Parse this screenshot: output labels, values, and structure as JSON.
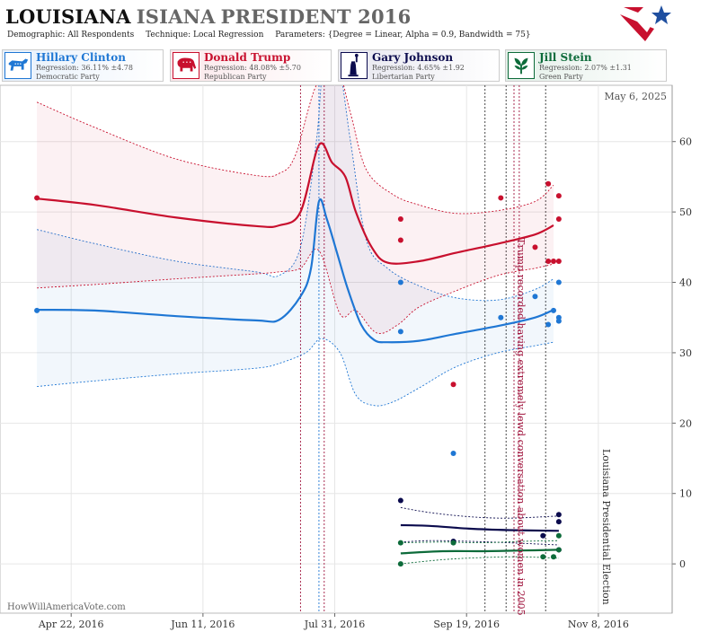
{
  "header": {
    "title_state": "LOUISIANA",
    "title_state_repeat": "ISIANA",
    "title_rest": "PRESIDENT 2016",
    "demographic": "Demographic: All Respondents",
    "technique": "Technique: Local Regression",
    "parameters": "Parameters: {Degree = Linear, Alpha = 0.9, Bandwidth = 75}"
  },
  "candidates": [
    {
      "name": "Hillary Clinton",
      "regression": "Regression: 36.11% ±4.78",
      "party": "Democratic Party",
      "color": "#1f77d4",
      "icon": "donkey-icon"
    },
    {
      "name": "Donald Trump",
      "regression": "Regression: 48.08% ±5.70",
      "party": "Republican Party",
      "color": "#c8102e",
      "icon": "elephant-icon"
    },
    {
      "name": "Gary Johnson",
      "regression": "Regression: 4.65% ±1.92",
      "party": "Libertarian Party",
      "color": "#0b0b4d",
      "icon": "statue-of-liberty-icon"
    },
    {
      "name": "Jill Stein",
      "regression": "Regression: 2.07% ±1.31",
      "party": "Green Party",
      "color": "#0d6b3a",
      "icon": "leaf-icon"
    }
  ],
  "date_stamp": "May 6, 2025",
  "watermark": "HowWillAmericaVote.com",
  "chart_data": {
    "type": "line",
    "x_axis_type": "date",
    "xlim": [
      "2016-03-26",
      "2016-12-06"
    ],
    "ylim": [
      -7,
      68
    ],
    "x_ticks": [
      "Apr 22, 2016",
      "Jun 11, 2016",
      "Jul 31, 2016",
      "Sep 19, 2016",
      "Nov 8, 2016"
    ],
    "x_tick_dates": [
      "2016-04-22",
      "2016-06-11",
      "2016-07-31",
      "2016-09-19",
      "2016-11-08"
    ],
    "y_ticks": [
      0,
      10,
      20,
      30,
      40,
      50,
      60
    ],
    "grid": true,
    "annotations": [
      {
        "text": "Trump recorded having extremely lewd conversation about women in 2005",
        "date": "2016-10-07",
        "color": "#a0153e"
      },
      {
        "text": "Louisiana Presidential Election",
        "date": "2016-11-08",
        "color": "#333333"
      }
    ],
    "event_lines": [
      {
        "date": "2016-07-18",
        "color": "#a0153e"
      },
      {
        "date": "2016-07-25",
        "color": "#1f77d4"
      },
      {
        "date": "2016-07-27",
        "color": "#a0153e"
      },
      {
        "date": "2016-09-26",
        "color": "#333333"
      },
      {
        "date": "2016-10-04",
        "color": "#333333"
      },
      {
        "date": "2016-10-07",
        "color": "#a0153e"
      },
      {
        "date": "2016-10-09",
        "color": "#a0153e"
      },
      {
        "date": "2016-10-19",
        "color": "#333333"
      }
    ],
    "series": [
      {
        "name": "Hillary Clinton",
        "color": "#1f77d4",
        "line": [
          [
            "2016-04-09",
            36.1
          ],
          [
            "2016-05-01",
            36.0
          ],
          [
            "2016-06-01",
            35.2
          ],
          [
            "2016-07-01",
            34.6
          ],
          [
            "2016-07-10",
            34.7
          ],
          [
            "2016-07-18",
            38.0
          ],
          [
            "2016-07-22",
            42.0
          ],
          [
            "2016-07-25",
            51.5
          ],
          [
            "2016-07-28",
            49.0
          ],
          [
            "2016-08-01",
            44.0
          ],
          [
            "2016-08-05",
            39.0
          ],
          [
            "2016-08-10",
            34.0
          ],
          [
            "2016-08-15",
            31.8
          ],
          [
            "2016-08-20",
            31.5
          ],
          [
            "2016-09-01",
            31.7
          ],
          [
            "2016-09-15",
            32.7
          ],
          [
            "2016-10-01",
            33.8
          ],
          [
            "2016-10-15",
            35.0
          ],
          [
            "2016-10-22",
            36.1
          ]
        ],
        "upper": [
          [
            "2016-04-09",
            47.5
          ],
          [
            "2016-05-01",
            45.5
          ],
          [
            "2016-06-01",
            43.0
          ],
          [
            "2016-07-01",
            41.5
          ],
          [
            "2016-07-10",
            41.0
          ],
          [
            "2016-07-18",
            45.0
          ],
          [
            "2016-07-24",
            60.0
          ],
          [
            "2016-07-27",
            72.0
          ],
          [
            "2016-08-01",
            72.0
          ],
          [
            "2016-08-06",
            60.0
          ],
          [
            "2016-08-12",
            46.0
          ],
          [
            "2016-08-20",
            42.0
          ],
          [
            "2016-09-01",
            39.5
          ],
          [
            "2016-09-15",
            37.8
          ],
          [
            "2016-10-01",
            37.5
          ],
          [
            "2016-10-15",
            39.0
          ],
          [
            "2016-10-22",
            40.5
          ]
        ],
        "lower": [
          [
            "2016-04-09",
            25.2
          ],
          [
            "2016-05-01",
            26.0
          ],
          [
            "2016-06-01",
            27.0
          ],
          [
            "2016-07-01",
            27.8
          ],
          [
            "2016-07-10",
            28.5
          ],
          [
            "2016-07-20",
            30.0
          ],
          [
            "2016-07-26",
            32.0
          ],
          [
            "2016-08-02",
            30.0
          ],
          [
            "2016-08-08",
            24.0
          ],
          [
            "2016-08-15",
            22.5
          ],
          [
            "2016-08-22",
            23.0
          ],
          [
            "2016-09-01",
            25.0
          ],
          [
            "2016-09-15",
            28.0
          ],
          [
            "2016-10-01",
            30.0
          ],
          [
            "2016-10-15",
            31.0
          ],
          [
            "2016-10-22",
            31.5
          ]
        ],
        "points": [
          [
            "2016-04-09",
            36
          ],
          [
            "2016-08-25",
            40
          ],
          [
            "2016-08-25",
            33
          ],
          [
            "2016-09-14",
            15.7
          ],
          [
            "2016-10-02",
            35
          ],
          [
            "2016-10-15",
            38
          ],
          [
            "2016-10-20",
            34
          ],
          [
            "2016-10-22",
            36
          ],
          [
            "2016-10-24",
            40
          ],
          [
            "2016-10-24",
            35
          ],
          [
            "2016-10-24",
            34.5
          ]
        ]
      },
      {
        "name": "Donald Trump",
        "color": "#c8102e",
        "line": [
          [
            "2016-04-09",
            51.9
          ],
          [
            "2016-05-01",
            51.0
          ],
          [
            "2016-06-01",
            49.2
          ],
          [
            "2016-07-01",
            48.0
          ],
          [
            "2016-07-10",
            48.1
          ],
          [
            "2016-07-18",
            50.0
          ],
          [
            "2016-07-25",
            59.5
          ],
          [
            "2016-07-30",
            57.0
          ],
          [
            "2016-08-04",
            55.0
          ],
          [
            "2016-08-08",
            50.0
          ],
          [
            "2016-08-14",
            45.0
          ],
          [
            "2016-08-20",
            42.8
          ],
          [
            "2016-09-01",
            43.0
          ],
          [
            "2016-09-15",
            44.2
          ],
          [
            "2016-10-01",
            45.5
          ],
          [
            "2016-10-15",
            46.8
          ],
          [
            "2016-10-22",
            48.1
          ]
        ],
        "upper": [
          [
            "2016-04-09",
            65.6
          ],
          [
            "2016-05-01",
            62.0
          ],
          [
            "2016-06-01",
            57.5
          ],
          [
            "2016-07-01",
            55.2
          ],
          [
            "2016-07-10",
            55.5
          ],
          [
            "2016-07-16",
            58.0
          ],
          [
            "2016-07-24",
            68.0
          ],
          [
            "2016-08-01",
            70.0
          ],
          [
            "2016-08-06",
            64.0
          ],
          [
            "2016-08-12",
            56.0
          ],
          [
            "2016-08-22",
            52.5
          ],
          [
            "2016-09-01",
            51.0
          ],
          [
            "2016-09-15",
            49.8
          ],
          [
            "2016-10-01",
            50.2
          ],
          [
            "2016-10-15",
            51.5
          ],
          [
            "2016-10-22",
            53.8
          ]
        ],
        "lower": [
          [
            "2016-04-09",
            39.2
          ],
          [
            "2016-05-01",
            39.7
          ],
          [
            "2016-06-01",
            40.5
          ],
          [
            "2016-07-01",
            41.2
          ],
          [
            "2016-07-10",
            41.5
          ],
          [
            "2016-07-18",
            42.0
          ],
          [
            "2016-07-25",
            44.5
          ],
          [
            "2016-08-02",
            35.5
          ],
          [
            "2016-08-08",
            36.0
          ],
          [
            "2016-08-16",
            32.8
          ],
          [
            "2016-08-24",
            34.0
          ],
          [
            "2016-09-01",
            36.5
          ],
          [
            "2016-09-15",
            38.8
          ],
          [
            "2016-10-01",
            41.0
          ],
          [
            "2016-10-15",
            42.0
          ],
          [
            "2016-10-22",
            42.6
          ]
        ],
        "points": [
          [
            "2016-04-09",
            52
          ],
          [
            "2016-08-25",
            49
          ],
          [
            "2016-08-25",
            46
          ],
          [
            "2016-09-14",
            25.5
          ],
          [
            "2016-10-02",
            52
          ],
          [
            "2016-10-15",
            45
          ],
          [
            "2016-10-20",
            54
          ],
          [
            "2016-10-20",
            43
          ],
          [
            "2016-10-22",
            43
          ],
          [
            "2016-10-24",
            52.3
          ],
          [
            "2016-10-24",
            49
          ],
          [
            "2016-10-24",
            43
          ]
        ]
      },
      {
        "name": "Gary Johnson",
        "color": "#0b0b4d",
        "line": [
          [
            "2016-08-25",
            5.5
          ],
          [
            "2016-09-05",
            5.4
          ],
          [
            "2016-09-20",
            5.0
          ],
          [
            "2016-10-05",
            4.8
          ],
          [
            "2016-10-24",
            4.7
          ]
        ],
        "upper": [
          [
            "2016-08-25",
            8.0
          ],
          [
            "2016-09-05",
            7.3
          ],
          [
            "2016-09-20",
            6.7
          ],
          [
            "2016-10-05",
            6.5
          ],
          [
            "2016-10-24",
            6.8
          ]
        ],
        "lower": [
          [
            "2016-08-25",
            3.1
          ],
          [
            "2016-09-05",
            3.3
          ],
          [
            "2016-09-20",
            3.2
          ],
          [
            "2016-10-05",
            3.0
          ],
          [
            "2016-10-24",
            2.7
          ]
        ],
        "points": [
          [
            "2016-08-25",
            9
          ],
          [
            "2016-09-14",
            3.2
          ],
          [
            "2016-10-18",
            4
          ],
          [
            "2016-10-24",
            7
          ],
          [
            "2016-10-24",
            6
          ],
          [
            "2016-10-24",
            2
          ]
        ]
      },
      {
        "name": "Jill Stein",
        "color": "#0d6b3a",
        "line": [
          [
            "2016-08-25",
            1.5
          ],
          [
            "2016-09-10",
            1.8
          ],
          [
            "2016-09-25",
            1.8
          ],
          [
            "2016-10-10",
            1.9
          ],
          [
            "2016-10-24",
            2.0
          ]
        ],
        "upper": [
          [
            "2016-08-25",
            3.0
          ],
          [
            "2016-09-10",
            3.1
          ],
          [
            "2016-09-25",
            3.0
          ],
          [
            "2016-10-10",
            3.2
          ],
          [
            "2016-10-24",
            3.3
          ]
        ],
        "lower": [
          [
            "2016-08-25",
            0.0
          ],
          [
            "2016-09-10",
            0.6
          ],
          [
            "2016-09-25",
            0.9
          ],
          [
            "2016-10-10",
            1.0
          ],
          [
            "2016-10-24",
            0.8
          ]
        ],
        "points": [
          [
            "2016-08-25",
            3
          ],
          [
            "2016-08-25",
            0
          ],
          [
            "2016-09-14",
            3
          ],
          [
            "2016-10-18",
            1
          ],
          [
            "2016-10-22",
            1
          ],
          [
            "2016-10-24",
            4
          ],
          [
            "2016-10-24",
            2
          ]
        ]
      }
    ]
  }
}
